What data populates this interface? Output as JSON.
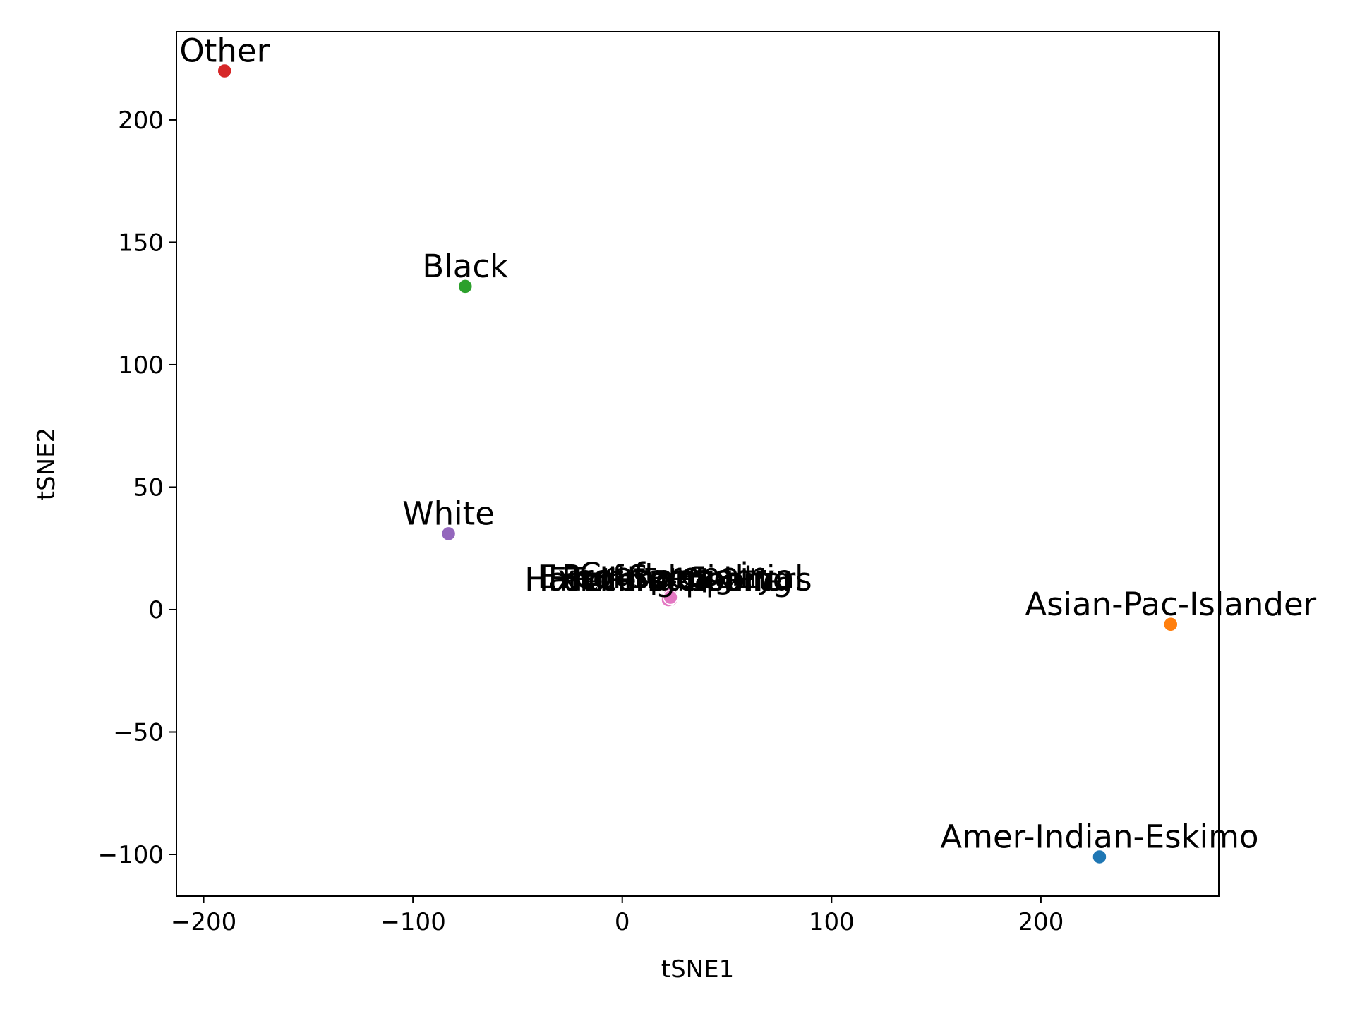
{
  "chart_data": {
    "type": "scatter",
    "title": "",
    "xlabel": "tSNE1",
    "ylabel": "tSNE2",
    "xlim": [
      -213,
      285
    ],
    "ylim": [
      -117,
      236
    ],
    "xticks": [
      -200,
      -100,
      0,
      100,
      200
    ],
    "yticks": [
      -100,
      -50,
      0,
      50,
      100,
      150,
      200
    ],
    "grid": false,
    "legend": "none",
    "points": [
      {
        "label": "Other",
        "x": -190,
        "y": 220,
        "color": "#d62728"
      },
      {
        "label": "Black",
        "x": -75,
        "y": 132,
        "color": "#2ca02c"
      },
      {
        "label": "White",
        "x": -83,
        "y": 31,
        "color": "#9467bd"
      },
      {
        "label": "Asian-Pac-Islander",
        "x": 262,
        "y": -6,
        "color": "#ff7f0e"
      },
      {
        "label": "Amer-Indian-Eskimo",
        "x": 228,
        "y": -101,
        "color": "#1f77b4"
      },
      {
        "label": "Handlers-cleaners",
        "x": 22,
        "y": 4,
        "color": "#e377c2"
      },
      {
        "label": "Exec-managerial",
        "x": 23,
        "y": 5,
        "color": "#e377c2"
      },
      {
        "label": "Prof-specialty",
        "x": 22,
        "y": 5,
        "color": "#e377c2"
      },
      {
        "label": "Farming-fishing",
        "x": 23,
        "y": 4,
        "color": "#e377c2"
      },
      {
        "label": "Craft-repair",
        "x": 23,
        "y": 6,
        "color": "#e377c2"
      },
      {
        "label": "Tech-support",
        "x": 22,
        "y": 4,
        "color": "#e377c2"
      },
      {
        "label": "Sales",
        "x": 23,
        "y": 5,
        "color": "#e377c2"
      }
    ]
  }
}
